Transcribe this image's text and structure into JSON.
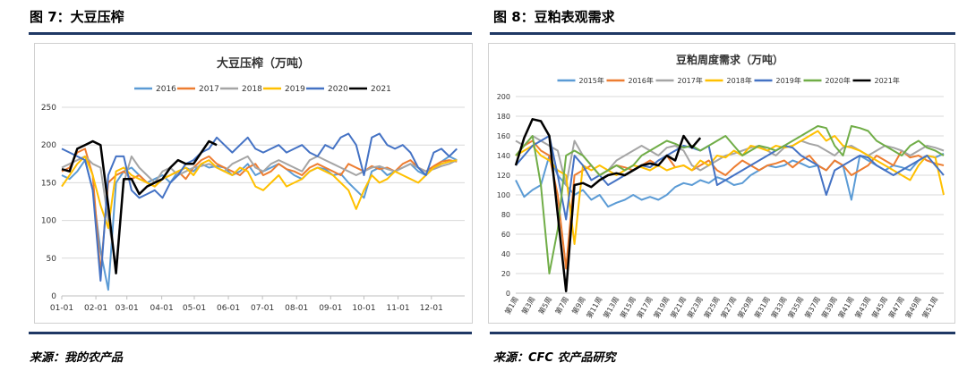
{
  "figures": {
    "left_title": "图 7：大豆压榨",
    "right_title": "图 8：豆粕表观需求",
    "left_source": "来源：我的农产品",
    "right_source": "来源：CFC 农产品研究"
  },
  "colors": {
    "rule": "#1f3864",
    "s2015": "#5b9bd5",
    "s2016": "#ed7d31",
    "s2017": "#a5a5a5",
    "s2018": "#ffc000",
    "s2019": "#4472c4",
    "s2020": "#70ad47",
    "s2021": "#000000"
  },
  "chart_data": [
    {
      "type": "line",
      "title": "大豆压榨（万吨）",
      "xlabel": "",
      "ylabel": "",
      "ylim": [
        0,
        250
      ],
      "yticks": [
        0,
        50,
        100,
        150,
        200,
        250
      ],
      "xlim": [
        0,
        52
      ],
      "xticks": [
        {
          "label": "01-01",
          "x": 0
        },
        {
          "label": "02-01",
          "x": 4.4
        },
        {
          "label": "03-01",
          "x": 8.4
        },
        {
          "label": "04-01",
          "x": 12.9
        },
        {
          "label": "05-01",
          "x": 17.1
        },
        {
          "label": "06-01",
          "x": 21.5
        },
        {
          "label": "07-01",
          "x": 25.9
        },
        {
          "label": "08-01",
          "x": 30.3
        },
        {
          "label": "09-01",
          "x": 34.7
        },
        {
          "label": "10-01",
          "x": 39
        },
        {
          "label": "11-01",
          "x": 43.4
        },
        {
          "label": "12-01",
          "x": 47.7
        }
      ],
      "legend": "top",
      "grid": true,
      "series": [
        {
          "name": "2016",
          "color": "#5b9bd5",
          "values": [
            160,
            155,
            165,
            180,
            140,
            60,
            8,
            150,
            165,
            170,
            160,
            150,
            155,
            160,
            150,
            165,
            170,
            165,
            175,
            170,
            172,
            170,
            160,
            165,
            175,
            160,
            165,
            170,
            175,
            168,
            160,
            155,
            165,
            170,
            168,
            160,
            162,
            150,
            140,
            130,
            165,
            170,
            160,
            165,
            170,
            175,
            165,
            160,
            170,
            178,
            185,
            180
          ]
        },
        {
          "name": "2017",
          "color": "#ed7d31",
          "values": [
            165,
            170,
            190,
            195,
            160,
            30,
            150,
            160,
            165,
            155,
            160,
            150,
            145,
            155,
            160,
            165,
            155,
            170,
            180,
            185,
            175,
            170,
            165,
            160,
            170,
            175,
            160,
            165,
            175,
            168,
            165,
            160,
            170,
            175,
            170,
            165,
            160,
            175,
            170,
            165,
            172,
            168,
            170,
            165,
            175,
            180,
            170,
            165,
            172,
            178,
            180,
            178
          ]
        },
        {
          "name": "2018",
          "color": "#a5a5a5",
          "values": [
            170,
            175,
            180,
            185,
            175,
            170,
            100,
            40,
            150,
            185,
            170,
            160,
            150,
            165,
            170,
            160,
            165,
            170,
            172,
            175,
            170,
            165,
            175,
            180,
            185,
            170,
            165,
            175,
            180,
            175,
            170,
            165,
            180,
            185,
            180,
            175,
            170,
            165,
            160,
            165,
            170,
            172,
            168,
            165,
            170,
            175,
            170,
            165,
            168,
            172,
            175,
            180
          ]
        },
        {
          "name": "2019",
          "color": "#ffc000",
          "values": [
            145,
            160,
            175,
            185,
            160,
            120,
            90,
            165,
            170,
            160,
            155,
            150,
            145,
            155,
            160,
            165,
            170,
            160,
            175,
            180,
            170,
            165,
            160,
            170,
            165,
            145,
            140,
            150,
            160,
            145,
            150,
            155,
            165,
            170,
            165,
            160,
            150,
            140,
            115,
            140,
            160,
            150,
            155,
            165,
            160,
            155,
            150,
            160,
            170,
            175,
            178,
            180
          ]
        },
        {
          "name": "2020",
          "color": "#4472c4",
          "values": [
            195,
            190,
            185,
            180,
            140,
            20,
            160,
            185,
            185,
            140,
            130,
            135,
            140,
            130,
            150,
            160,
            175,
            180,
            190,
            195,
            210,
            200,
            190,
            200,
            210,
            195,
            190,
            195,
            200,
            190,
            195,
            200,
            190,
            185,
            200,
            195,
            210,
            215,
            200,
            160,
            210,
            215,
            200,
            195,
            200,
            190,
            170,
            160,
            190,
            195,
            185,
            195
          ]
        },
        {
          "name": "2021",
          "color": "#000000",
          "values": [
            168,
            165,
            195,
            200,
            205,
            200,
            120,
            30,
            155,
            155,
            135,
            145,
            150,
            155,
            170,
            180,
            175,
            175,
            190,
            205,
            200
          ]
        }
      ]
    },
    {
      "type": "line",
      "title": "豆粕周度需求（万吨）",
      "xlabel": "",
      "ylabel": "",
      "ylim": [
        0,
        200
      ],
      "yticks": [
        0,
        20,
        40,
        60,
        80,
        100,
        120,
        140,
        160,
        180,
        200
      ],
      "xticks": [
        "第1周",
        "第3周",
        "第5周",
        "第7周",
        "第9周",
        "第11周",
        "第13周",
        "第15周",
        "第17周",
        "第19周",
        "第21周",
        "第23周",
        "第25周",
        "第27周",
        "第29周",
        "第31周",
        "第33周",
        "第35周",
        "第37周",
        "第39周",
        "第41周",
        "第43周",
        "第45周",
        "第47周",
        "第49周",
        "第51周"
      ],
      "legend": "top",
      "grid": true,
      "series": [
        {
          "name": "2015年",
          "color": "#5b9bd5",
          "values": [
            115,
            98,
            105,
            110,
            140,
            120,
            110,
            100,
            105,
            95,
            100,
            88,
            92,
            95,
            100,
            95,
            98,
            95,
            100,
            108,
            112,
            110,
            115,
            112,
            118,
            115,
            110,
            112,
            120,
            125,
            130,
            128,
            130,
            135,
            132,
            128,
            130,
            125,
            135,
            130,
            95,
            140,
            135,
            130,
            125,
            130,
            128,
            125,
            135,
            140,
            138,
            142
          ]
        },
        {
          "name": "2016年",
          "color": "#ed7d31",
          "values": [
            140,
            150,
            155,
            145,
            140,
            100,
            25,
            120,
            125,
            130,
            120,
            125,
            130,
            128,
            125,
            130,
            135,
            130,
            140,
            128,
            130,
            125,
            130,
            135,
            125,
            120,
            128,
            135,
            130,
            125,
            130,
            132,
            135,
            128,
            135,
            140,
            130,
            125,
            135,
            130,
            120,
            125,
            130,
            140,
            135,
            130,
            145,
            138,
            140,
            135,
            132,
            130
          ]
        },
        {
          "name": "2017年",
          "color": "#a5a5a5",
          "values": [
            155,
            150,
            160,
            155,
            150,
            145,
            110,
            155,
            140,
            130,
            120,
            125,
            135,
            140,
            145,
            150,
            145,
            140,
            148,
            150,
            145,
            130,
            125,
            130,
            135,
            140,
            142,
            145,
            148,
            150,
            145,
            140,
            148,
            150,
            155,
            152,
            150,
            145,
            140,
            148,
            150,
            145,
            140,
            145,
            150,
            148,
            145,
            140,
            145,
            150,
            148,
            145
          ]
        },
        {
          "name": "2018年",
          "color": "#ffc000",
          "values": [
            140,
            145,
            150,
            140,
            135,
            125,
            120,
            50,
            130,
            125,
            130,
            125,
            120,
            125,
            130,
            128,
            125,
            130,
            125,
            128,
            130,
            125,
            135,
            130,
            140,
            138,
            145,
            140,
            150,
            148,
            145,
            150,
            148,
            150,
            155,
            160,
            165,
            155,
            160,
            150,
            148,
            145,
            140,
            135,
            130,
            125,
            120,
            115,
            130,
            140,
            138,
            100
          ]
        },
        {
          "name": "2019年",
          "color": "#4472c4",
          "values": [
            130,
            140,
            150,
            155,
            160,
            120,
            75,
            140,
            130,
            115,
            120,
            110,
            115,
            120,
            125,
            130,
            128,
            135,
            140,
            145,
            150,
            148,
            145,
            150,
            110,
            115,
            120,
            125,
            130,
            135,
            140,
            145,
            150,
            148,
            140,
            135,
            130,
            100,
            125,
            130,
            135,
            140,
            138,
            130,
            125,
            120,
            125,
            130,
            135,
            140,
            130,
            120
          ]
        },
        {
          "name": "2020年",
          "color": "#70ad47",
          "values": [
            140,
            150,
            160,
            110,
            20,
            65,
            140,
            145,
            140,
            130,
            120,
            125,
            130,
            125,
            130,
            140,
            145,
            150,
            155,
            152,
            148,
            150,
            145,
            150,
            155,
            160,
            150,
            140,
            145,
            150,
            148,
            145,
            150,
            155,
            160,
            165,
            170,
            168,
            150,
            140,
            170,
            168,
            165,
            155,
            150,
            145,
            140,
            150,
            155,
            148,
            145,
            140
          ]
        },
        {
          "name": "2021年",
          "color": "#000000",
          "values": [
            130,
            158,
            177,
            175,
            160,
            80,
            2,
            110,
            112,
            108,
            115,
            120,
            122,
            120,
            125,
            130,
            132,
            130,
            140,
            135,
            160,
            148,
            158
          ]
        }
      ]
    }
  ]
}
